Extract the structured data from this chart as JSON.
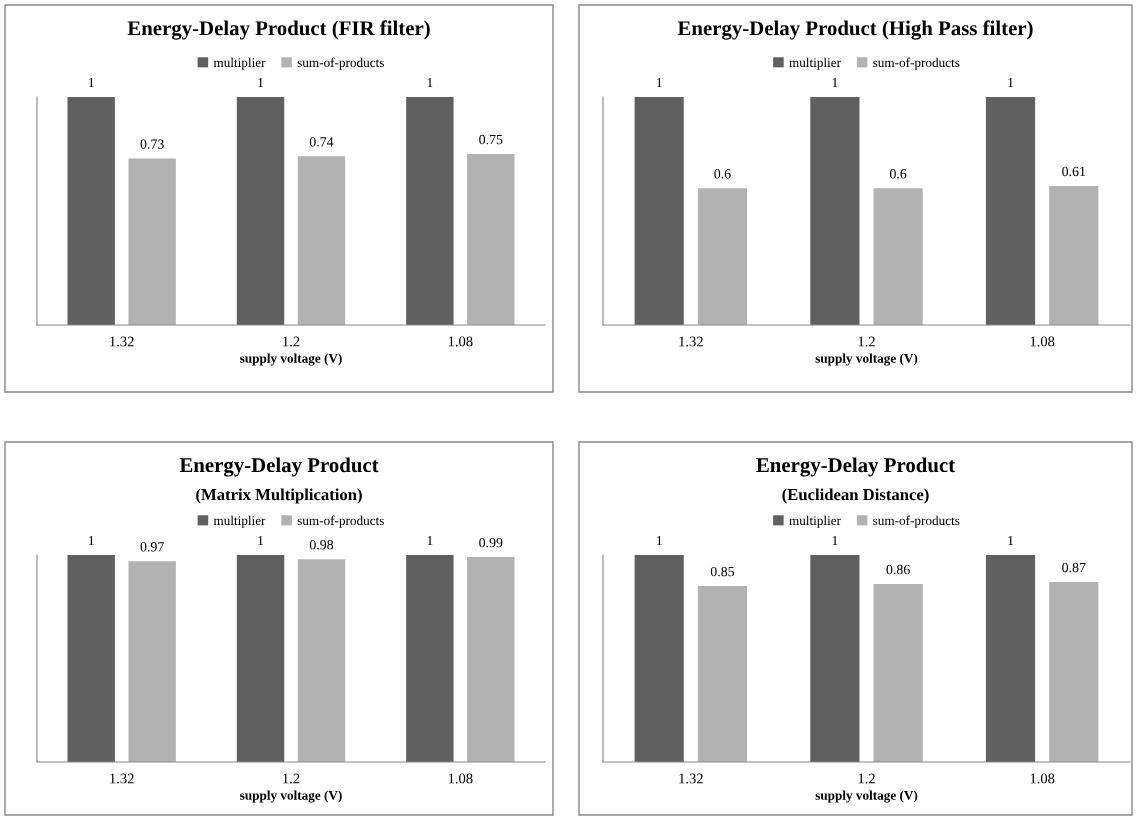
{
  "chart_data": [
    {
      "type": "bar",
      "title": "Energy-Delay Product (FIR filter)",
      "xlabel": "supply voltage (V)",
      "categories": [
        "1.32",
        "1.2",
        "1.08"
      ],
      "series": [
        {
          "name": "multiplier",
          "color": "#606060",
          "values": [
            1,
            1,
            1
          ]
        },
        {
          "name": "sum-of-products",
          "color": "#b2b2b2",
          "values": [
            0.73,
            0.74,
            0.75
          ]
        }
      ],
      "data_labels": true,
      "legend": "top",
      "tick_labels": "x",
      "grid": false
    },
    {
      "type": "bar",
      "title": "Energy-Delay Product (High Pass filter)",
      "xlabel": "supply voltage (V)",
      "categories": [
        "1.32",
        "1.2",
        "1.08"
      ],
      "series": [
        {
          "name": "multiplier",
          "color": "#606060",
          "values": [
            1,
            1,
            1
          ]
        },
        {
          "name": "sum-of-products",
          "color": "#b2b2b2",
          "values": [
            0.6,
            0.6,
            0.61
          ]
        }
      ],
      "data_labels": true,
      "legend": "top",
      "tick_labels": "x",
      "grid": false
    },
    {
      "type": "bar",
      "title": "Energy-Delay Product",
      "subtitle": "(Matrix Multiplication)",
      "xlabel": "supply voltage (V)",
      "categories": [
        "1.32",
        "1.2",
        "1.08"
      ],
      "series": [
        {
          "name": "multiplier",
          "color": "#606060",
          "values": [
            1,
            1,
            1
          ]
        },
        {
          "name": "sum-of-products",
          "color": "#b2b2b2",
          "values": [
            0.97,
            0.98,
            0.99
          ]
        }
      ],
      "data_labels": true,
      "legend": "top",
      "tick_labels": "x",
      "grid": false
    },
    {
      "type": "bar",
      "title": "Energy-Delay Product",
      "subtitle": "(Euclidean Distance)",
      "xlabel": "supply voltage (V)",
      "categories": [
        "1.32",
        "1.2",
        "1.08"
      ],
      "series": [
        {
          "name": "multiplier",
          "color": "#606060",
          "values": [
            1,
            1,
            1
          ]
        },
        {
          "name": "sum-of-products",
          "color": "#b2b2b2",
          "values": [
            0.85,
            0.86,
            0.87
          ]
        }
      ],
      "data_labels": true,
      "legend": "top",
      "tick_labels": "x",
      "grid": false
    }
  ]
}
